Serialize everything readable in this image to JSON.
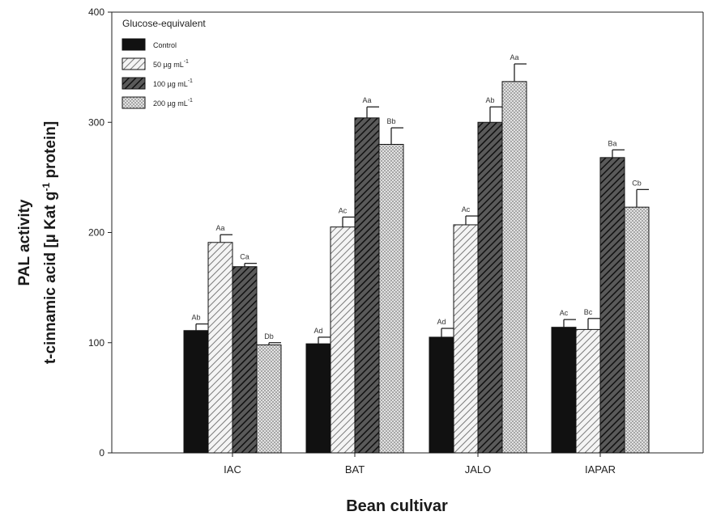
{
  "chart_data": {
    "type": "bar",
    "categories": [
      "IAC",
      "BAT",
      "JALO",
      "IAPAR"
    ],
    "ylim": [
      0,
      400
    ],
    "yticks": [
      0,
      100,
      200,
      300,
      400
    ],
    "ylabel_line1": "PAL activity",
    "ylabel_line2_pre": "t-cinnamic acid [µ Kat g",
    "ylabel_line2_sup": "-1",
    "ylabel_line2_post": " protein]",
    "xlabel": "Bean cultivar",
    "legend": {
      "title": "Glucose-equivalent",
      "position": "top-left",
      "unit_sup": "-1"
    },
    "series": [
      {
        "name": "Control",
        "legend_text": "Control",
        "legend_sup": "",
        "pattern": "solid-black",
        "values": [
          111,
          99,
          105,
          114
        ],
        "errors": [
          6,
          6,
          8,
          7
        ],
        "labels": [
          "Ab",
          "Ad",
          "Ad",
          "Ac"
        ]
      },
      {
        "name": "50 µg mL-1",
        "legend_text": "50 µg mL",
        "legend_sup": "-1",
        "pattern": "diag-light",
        "values": [
          191,
          205,
          207,
          112
        ],
        "errors": [
          7,
          9,
          8,
          10
        ],
        "labels": [
          "Aa",
          "Ac",
          "Ac",
          "Bc"
        ]
      },
      {
        "name": "100 µg mL-1",
        "legend_text": "100 µg mL",
        "legend_sup": "-1",
        "pattern": "diag-dark",
        "values": [
          169,
          304,
          300,
          268
        ],
        "errors": [
          3,
          10,
          14,
          7
        ],
        "labels": [
          "Ca",
          "Aa",
          "Ab",
          "Ba"
        ]
      },
      {
        "name": "200 µg mL-1",
        "legend_text": "200 µg mL",
        "legend_sup": "-1",
        "pattern": "cross-light",
        "values": [
          98,
          280,
          337,
          223
        ],
        "errors": [
          2,
          15,
          16,
          16
        ],
        "labels": [
          "Db",
          "Bb",
          "Aa",
          "Cb"
        ]
      }
    ]
  }
}
